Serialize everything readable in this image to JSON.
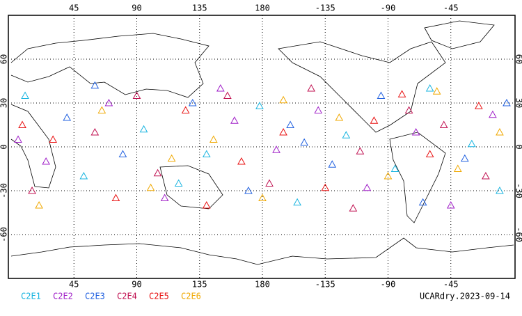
{
  "chart_data": {
    "type": "scatter",
    "xlim": [
      0,
      360
    ],
    "ylim": [
      -90,
      90
    ],
    "xticks": [
      45,
      90,
      135,
      180,
      {
        "value": 225,
        "label": "-135"
      },
      {
        "value": 270,
        "label": "-90"
      },
      {
        "value": 315,
        "label": "-45"
      }
    ],
    "yticks": [
      60,
      30,
      0,
      -30,
      -60
    ],
    "grid": true,
    "annotation": "UCARdry.2023-09-14",
    "series": [
      {
        "name": "C2E1",
        "color": "#18b4e0",
        "lon": [
          10,
          52,
          95,
          140,
          178,
          205,
          240,
          275,
          300,
          330,
          350,
          120
        ],
        "lat": [
          35,
          -20,
          12,
          -5,
          28,
          -38,
          8,
          -15,
          40,
          2,
          -30,
          -25
        ]
      },
      {
        "name": "C2E2",
        "color": "#a020c8",
        "lon": [
          25,
          70,
          110,
          160,
          190,
          220,
          255,
          290,
          315,
          345,
          5,
          150
        ],
        "lat": [
          -10,
          30,
          -35,
          18,
          -2,
          25,
          -28,
          10,
          -40,
          22,
          5,
          40
        ]
      },
      {
        "name": "C2E3",
        "color": "#2060e0",
        "lon": [
          40,
          80,
          130,
          170,
          200,
          230,
          265,
          295,
          325,
          355,
          60,
          210
        ],
        "lat": [
          20,
          -5,
          30,
          -30,
          15,
          -12,
          35,
          -38,
          -8,
          30,
          42,
          3
        ]
      },
      {
        "name": "C2E4",
        "color": "#c01050",
        "lon": [
          15,
          60,
          105,
          155,
          185,
          215,
          250,
          285,
          310,
          340,
          90,
          245
        ],
        "lat": [
          -30,
          10,
          -18,
          35,
          -25,
          40,
          -3,
          25,
          15,
          -20,
          35,
          -42
        ]
      },
      {
        "name": "C2E5",
        "color": "#e81010",
        "lon": [
          30,
          75,
          125,
          165,
          195,
          225,
          260,
          300,
          335,
          8,
          140,
          280
        ],
        "lat": [
          5,
          -35,
          25,
          -10,
          10,
          -28,
          18,
          -5,
          28,
          15,
          -40,
          36
        ]
      },
      {
        "name": "C2E6",
        "color": "#f0a800",
        "lon": [
          20,
          65,
          115,
          145,
          180,
          235,
          270,
          305,
          320,
          350,
          100,
          195
        ],
        "lat": [
          -40,
          25,
          -8,
          5,
          -35,
          20,
          -20,
          38,
          -15,
          10,
          -28,
          32
        ]
      }
    ]
  }
}
